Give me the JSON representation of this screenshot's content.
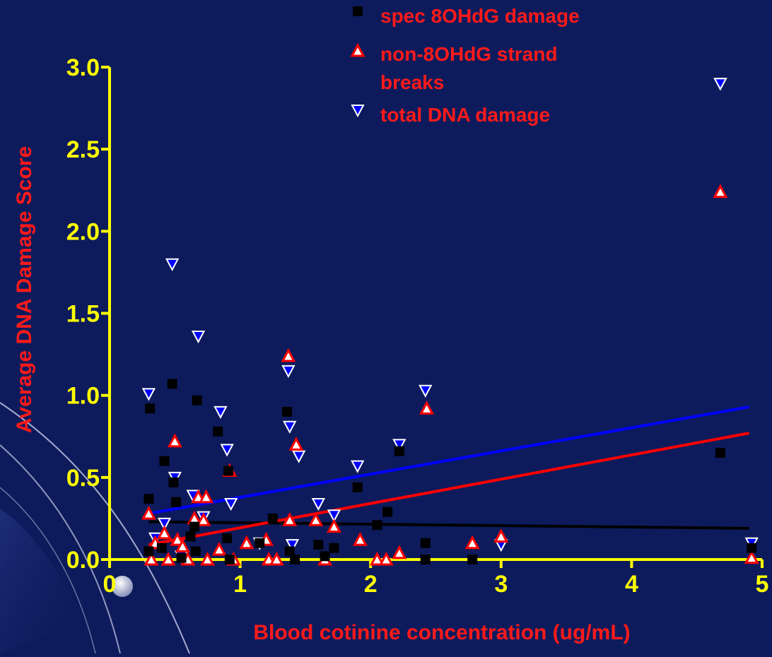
{
  "colors": {
    "background": "#0d1b5c",
    "axis": "#ffff00",
    "label_text": "#ff1a1a",
    "series_8ohdg": "#000000",
    "series_strand": "#ff0000",
    "series_total": "#0000ff"
  },
  "chart_data": {
    "type": "scatter",
    "title": "",
    "xlabel": "Blood cotinine concentration (ug/mL)",
    "ylabel": "Average DNA Damage Score",
    "xlim": [
      0,
      5
    ],
    "ylim": [
      0,
      3
    ],
    "x_ticks": [
      "0",
      "1",
      "2",
      "3",
      "4",
      "5"
    ],
    "y_ticks": [
      "0.0",
      "0.5",
      "1.0",
      "1.5",
      "2.0",
      "2.5",
      "3.0"
    ],
    "legend_position": "top-center",
    "series": [
      {
        "name": "spec 8OHdG damage",
        "marker": "square",
        "points": [
          [
            0.3,
            0.05
          ],
          [
            0.3,
            0.37
          ],
          [
            0.31,
            0.92
          ],
          [
            0.4,
            0.07
          ],
          [
            0.42,
            0.6
          ],
          [
            0.48,
            1.07
          ],
          [
            0.49,
            0.47
          ],
          [
            0.51,
            0.35
          ],
          [
            0.55,
            0.01
          ],
          [
            0.62,
            0.14
          ],
          [
            0.65,
            0.2
          ],
          [
            0.66,
            0.05
          ],
          [
            0.67,
            0.97
          ],
          [
            0.83,
            0.78
          ],
          [
            0.9,
            0.13
          ],
          [
            0.91,
            0.54
          ],
          [
            0.92,
            0.0
          ],
          [
            1.15,
            0.1
          ],
          [
            1.25,
            0.25
          ],
          [
            1.36,
            0.9
          ],
          [
            1.38,
            0.05
          ],
          [
            1.42,
            0.0
          ],
          [
            1.6,
            0.09
          ],
          [
            1.65,
            0.02
          ],
          [
            1.72,
            0.07
          ],
          [
            1.9,
            0.44
          ],
          [
            2.05,
            0.21
          ],
          [
            2.13,
            0.29
          ],
          [
            2.22,
            0.66
          ],
          [
            2.42,
            0.1
          ],
          [
            2.42,
            0.0
          ],
          [
            2.78,
            0.0
          ],
          [
            4.68,
            0.65
          ],
          [
            4.92,
            0.07
          ]
        ],
        "trend": [
          [
            0.3,
            0.23
          ],
          [
            4.9,
            0.19
          ]
        ]
      },
      {
        "name": "non-8OHdG strand breaks",
        "marker": "triangle-up",
        "points": [
          [
            0.3,
            0.28
          ],
          [
            0.32,
            0.0
          ],
          [
            0.35,
            0.1
          ],
          [
            0.42,
            0.16
          ],
          [
            0.45,
            0.0
          ],
          [
            0.5,
            0.72
          ],
          [
            0.52,
            0.12
          ],
          [
            0.56,
            0.08
          ],
          [
            0.6,
            0.0
          ],
          [
            0.65,
            0.25
          ],
          [
            0.68,
            0.38
          ],
          [
            0.72,
            0.24
          ],
          [
            0.74,
            0.38
          ],
          [
            0.75,
            0.0
          ],
          [
            0.84,
            0.06
          ],
          [
            0.92,
            0.54
          ],
          [
            0.95,
            0.0
          ],
          [
            1.05,
            0.1
          ],
          [
            1.2,
            0.12
          ],
          [
            1.22,
            0.0
          ],
          [
            1.28,
            0.0
          ],
          [
            1.37,
            1.24
          ],
          [
            1.38,
            0.24
          ],
          [
            1.43,
            0.7
          ],
          [
            1.58,
            0.24
          ],
          [
            1.65,
            0.0
          ],
          [
            1.72,
            0.2
          ],
          [
            1.92,
            0.12
          ],
          [
            2.05,
            0.0
          ],
          [
            2.12,
            0.0
          ],
          [
            2.22,
            0.04
          ],
          [
            2.43,
            0.92
          ],
          [
            2.78,
            0.1
          ],
          [
            3.0,
            0.14
          ],
          [
            4.68,
            2.24
          ],
          [
            4.92,
            0.01
          ]
        ],
        "trend": [
          [
            0.3,
            0.09
          ],
          [
            4.9,
            0.77
          ]
        ]
      },
      {
        "name": "total DNA damage",
        "marker": "triangle-down",
        "points": [
          [
            0.3,
            1.01
          ],
          [
            0.35,
            0.13
          ],
          [
            0.42,
            0.22
          ],
          [
            0.48,
            1.8
          ],
          [
            0.5,
            0.5
          ],
          [
            0.55,
            0.02
          ],
          [
            0.64,
            0.39
          ],
          [
            0.68,
            1.36
          ],
          [
            0.72,
            0.26
          ],
          [
            0.85,
            0.9
          ],
          [
            0.9,
            0.67
          ],
          [
            0.93,
            0.34
          ],
          [
            1.15,
            0.1
          ],
          [
            1.37,
            1.15
          ],
          [
            1.38,
            0.81
          ],
          [
            1.4,
            0.09
          ],
          [
            1.45,
            0.63
          ],
          [
            1.6,
            0.34
          ],
          [
            1.72,
            0.27
          ],
          [
            1.9,
            0.57
          ],
          [
            2.22,
            0.7
          ],
          [
            2.42,
            1.03
          ],
          [
            3.0,
            0.09
          ],
          [
            4.68,
            2.9
          ],
          [
            4.92,
            0.1
          ]
        ],
        "trend": [
          [
            0.3,
            0.28
          ],
          [
            4.9,
            0.93
          ]
        ]
      }
    ]
  }
}
